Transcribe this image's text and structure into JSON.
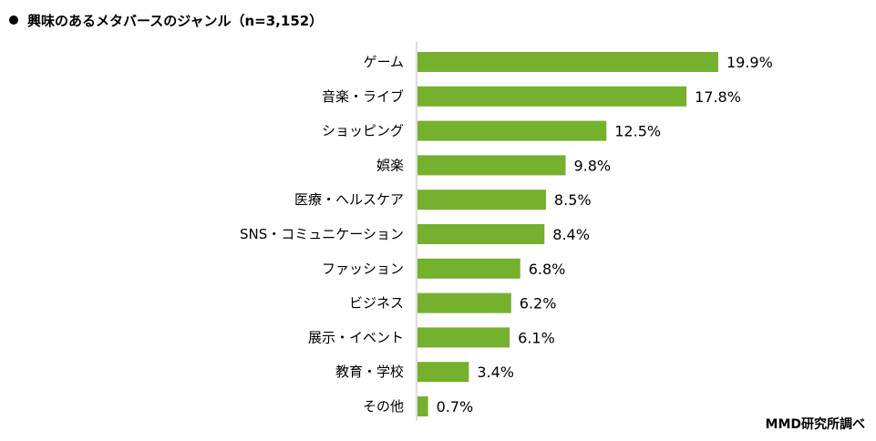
{
  "title": "興味のあるメタバースのジャンル（n=3,152）",
  "credit": "MMD研究所調べ",
  "colors": {
    "bar": "#76b02f",
    "axis": "#bfbfbf"
  },
  "chart_data": {
    "type": "bar",
    "orientation": "horizontal",
    "title": "興味のあるメタバースのジャンル（n=3,152）",
    "xlabel": "",
    "ylabel": "",
    "categories": [
      "ゲーム",
      "音楽・ライブ",
      "ショッピング",
      "娯楽",
      "医療・ヘルスケア",
      "SNS・コミュニケーション",
      "ファッション",
      "ビジネス",
      "展示・イベント",
      "教育・学校",
      "その他"
    ],
    "values": [
      19.9,
      17.8,
      12.5,
      9.8,
      8.5,
      8.4,
      6.8,
      6.2,
      6.1,
      3.4,
      0.7
    ],
    "labels": [
      "19.9%",
      "17.8%",
      "12.5%",
      "9.8%",
      "8.5%",
      "8.4%",
      "6.8%",
      "6.2%",
      "6.1%",
      "3.4%",
      "0.7%"
    ],
    "grid": false
  }
}
